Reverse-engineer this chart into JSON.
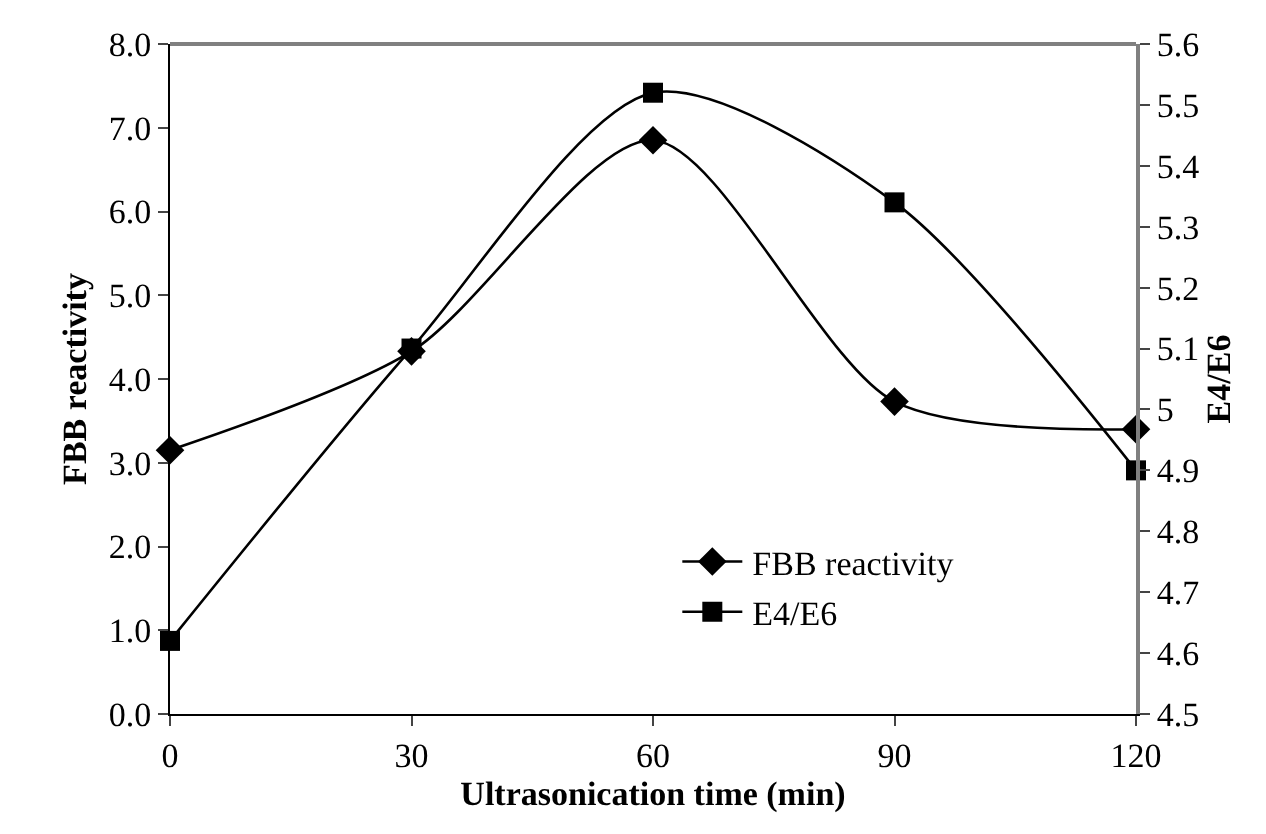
{
  "chart_data": {
    "type": "line",
    "xlabel": "Ultrasonication time (min)",
    "ylabel": "FBB reactivity",
    "y2label": "E4/E6",
    "x": [
      0,
      30,
      60,
      90,
      120
    ],
    "series": [
      {
        "name": "FBB reactivity",
        "color": "#000000",
        "marker": "diamond",
        "values": [
          3.15,
          4.33,
          6.85,
          3.73,
          3.4
        ]
      },
      {
        "name": "E4/E6",
        "color": "#000000",
        "marker": "square",
        "axis": "y2",
        "values": [
          4.62,
          5.1,
          5.52,
          5.34,
          4.9
        ]
      }
    ],
    "xlim": [
      0,
      120
    ],
    "xticks": [
      0,
      30,
      60,
      90,
      120
    ],
    "ylim": [
      0,
      8
    ],
    "yticks": [
      {
        "value": 0,
        "label": "0.0"
      },
      {
        "value": 1,
        "label": "1.0"
      },
      {
        "value": 2,
        "label": "2.0"
      },
      {
        "value": 3,
        "label": "3.0"
      },
      {
        "value": 4,
        "label": "4.0"
      },
      {
        "value": 5,
        "label": "5.0"
      },
      {
        "value": 6,
        "label": "6.0"
      },
      {
        "value": 7,
        "label": "7.0"
      },
      {
        "value": 8,
        "label": "8.0"
      }
    ],
    "y2lim": [
      4.5,
      5.6
    ],
    "y2ticks": [
      4.5,
      4.6,
      4.7,
      4.8,
      4.9,
      5,
      5.1,
      5.2,
      5.3,
      5.4,
      5.5,
      5.6
    ],
    "legend": "bottom right",
    "line_style": "solid"
  }
}
